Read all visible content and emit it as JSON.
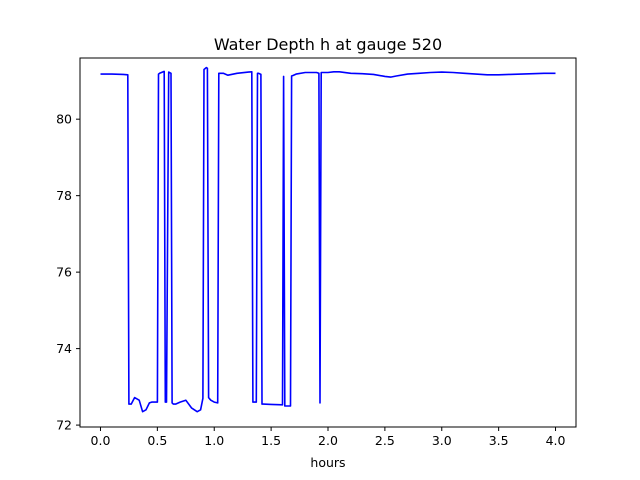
{
  "chart_data": {
    "type": "line",
    "title": "Water Depth h at gauge 520",
    "xlabel": "hours",
    "ylabel": "",
    "xlim": [
      -0.18,
      4.18
    ],
    "ylim": [
      71.95,
      81.6
    ],
    "xticks": [
      0.0,
      0.5,
      1.0,
      1.5,
      2.0,
      2.5,
      3.0,
      3.5,
      4.0
    ],
    "xtick_labels": [
      "0.0",
      "0.5",
      "1.0",
      "1.5",
      "2.0",
      "2.5",
      "3.0",
      "3.5",
      "4.0"
    ],
    "yticks": [
      72,
      74,
      76,
      78,
      80
    ],
    "ytick_labels": [
      "72",
      "74",
      "76",
      "78",
      "80"
    ],
    "grid": false,
    "series": [
      {
        "color": "#0000ff",
        "x": [
          0.0,
          0.1,
          0.2,
          0.24,
          0.25,
          0.27,
          0.3,
          0.34,
          0.37,
          0.4,
          0.43,
          0.45,
          0.48,
          0.5,
          0.51,
          0.52,
          0.56,
          0.57,
          0.58,
          0.6,
          0.62,
          0.63,
          0.64,
          0.66,
          0.7,
          0.75,
          0.8,
          0.85,
          0.88,
          0.9,
          0.91,
          0.93,
          0.94,
          0.95,
          0.97,
          1.0,
          1.03,
          1.04,
          1.05,
          1.08,
          1.12,
          1.2,
          1.3,
          1.33,
          1.34,
          1.37,
          1.38,
          1.39,
          1.41,
          1.42,
          1.43,
          1.5,
          1.6,
          1.61,
          1.62,
          1.65,
          1.67,
          1.68,
          1.69,
          1.72,
          1.8,
          1.9,
          1.92,
          1.93,
          1.94,
          1.95,
          2.0,
          2.05,
          2.1,
          2.2,
          2.3,
          2.4,
          2.5,
          2.55,
          2.6,
          2.7,
          2.8,
          2.9,
          3.0,
          3.1,
          3.2,
          3.3,
          3.4,
          3.5,
          3.6,
          3.7,
          3.8,
          3.9,
          4.0
        ],
        "y": [
          81.18,
          81.18,
          81.17,
          81.16,
          72.55,
          72.55,
          72.72,
          72.65,
          72.35,
          72.4,
          72.58,
          72.6,
          72.6,
          72.6,
          81.18,
          81.2,
          81.25,
          72.6,
          72.6,
          81.23,
          81.2,
          72.58,
          72.55,
          72.55,
          72.6,
          72.65,
          72.45,
          72.35,
          72.4,
          72.7,
          81.3,
          81.35,
          81.33,
          72.72,
          72.65,
          72.6,
          72.58,
          81.2,
          81.2,
          81.2,
          81.15,
          81.2,
          81.23,
          81.24,
          72.6,
          72.6,
          81.2,
          81.2,
          81.17,
          72.55,
          72.55,
          72.54,
          72.53,
          81.12,
          72.5,
          72.5,
          72.5,
          81.13,
          81.14,
          81.18,
          81.22,
          81.22,
          81.2,
          72.58,
          81.22,
          81.22,
          81.22,
          81.24,
          81.24,
          81.2,
          81.19,
          81.17,
          81.12,
          81.1,
          81.13,
          81.18,
          81.2,
          81.22,
          81.23,
          81.22,
          81.2,
          81.18,
          81.16,
          81.16,
          81.17,
          81.18,
          81.19,
          81.2,
          81.2
        ]
      }
    ]
  }
}
